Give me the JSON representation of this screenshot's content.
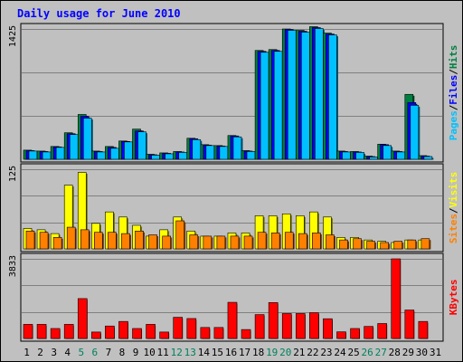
{
  "chart_data": {
    "type": "bar",
    "title": "Daily usage for June 2010",
    "categories": [
      "1",
      "2",
      "3",
      "4",
      "5",
      "6",
      "7",
      "8",
      "9",
      "10",
      "11",
      "12",
      "13",
      "14",
      "15",
      "16",
      "17",
      "18",
      "19",
      "20",
      "21",
      "22",
      "23",
      "24",
      "25",
      "26",
      "27",
      "28",
      "29",
      "30",
      "31"
    ],
    "weekend_categories": [
      "5",
      "6",
      "12",
      "13",
      "19",
      "20",
      "26",
      "27"
    ],
    "panels": [
      {
        "id": "hits-files-pages",
        "ymax_label": "1425",
        "ymax": 1425,
        "series": [
          {
            "name": "Hits",
            "color": "#008040",
            "values": [
              100,
              90,
              140,
              290,
              490,
              90,
              140,
              200,
              330,
              55,
              70,
              85,
              230,
              160,
              150,
              260,
              95,
              1190,
              1200,
              1425,
              1410,
              1450,
              1380,
              90,
              85,
              35,
              165,
              90,
              710,
              40,
              0
            ]
          },
          {
            "name": "Files",
            "color": "#0000ff",
            "values": [
              95,
              85,
              135,
              280,
              470,
              85,
              130,
              195,
              310,
              50,
              65,
              80,
              225,
              155,
              145,
              255,
              90,
              1180,
              1190,
              1420,
              1400,
              1440,
              1370,
              85,
              80,
              30,
              160,
              85,
              620,
              35,
              0
            ]
          },
          {
            "name": "Pages",
            "color": "#00c0ff",
            "values": [
              90,
              80,
              130,
              270,
              450,
              80,
              120,
              190,
              300,
              45,
              60,
              75,
              215,
              150,
              140,
              245,
              85,
              1170,
              1180,
              1410,
              1390,
              1430,
              1360,
              80,
              75,
              25,
              150,
              80,
              590,
              30,
              0
            ]
          }
        ],
        "legend": [
          "Pages",
          "Files",
          "Hits"
        ]
      },
      {
        "id": "visits-sites",
        "ymax_label": "125",
        "ymax": 125,
        "series": [
          {
            "name": "Visits",
            "color": "#ffff00",
            "values": [
              32,
              30,
              24,
              100,
              120,
              40,
              58,
              50,
              37,
              20,
              30,
              50,
              28,
              20,
              20,
              25,
              25,
              52,
              52,
              55,
              52,
              58,
              50,
              18,
              18,
              14,
              12,
              10,
              14,
              14,
              0
            ]
          },
          {
            "name": "Sites",
            "color": "#ff8000",
            "values": [
              28,
              26,
              18,
              34,
              30,
              26,
              26,
              24,
              28,
              22,
              20,
              44,
              22,
              20,
              20,
              20,
              20,
              26,
              25,
              26,
              24,
              25,
              22,
              14,
              16,
              12,
              10,
              12,
              14,
              16,
              0
            ]
          }
        ],
        "legend": [
          "Sites",
          "Visits"
        ]
      },
      {
        "id": "kbytes",
        "ymax_label": "3833",
        "ymax": 3833,
        "series": [
          {
            "name": "KBytes",
            "color": "#ff0000",
            "values": [
              680,
              680,
              480,
              680,
              1920,
              310,
              600,
              820,
              480,
              680,
              310,
              1020,
              960,
              530,
              530,
              1740,
              430,
              1150,
              1730,
              1200,
              1200,
              1240,
              950,
              320,
              480,
              580,
              720,
              3833,
              1370,
              820,
              0
            ]
          }
        ],
        "legend": [
          "KBytes"
        ]
      }
    ]
  },
  "colors": {
    "background": "#c0c0c0",
    "title": "#0000ff",
    "weekday_label": "#000000",
    "weekend_label": "#00805c",
    "slash": "#000000"
  }
}
